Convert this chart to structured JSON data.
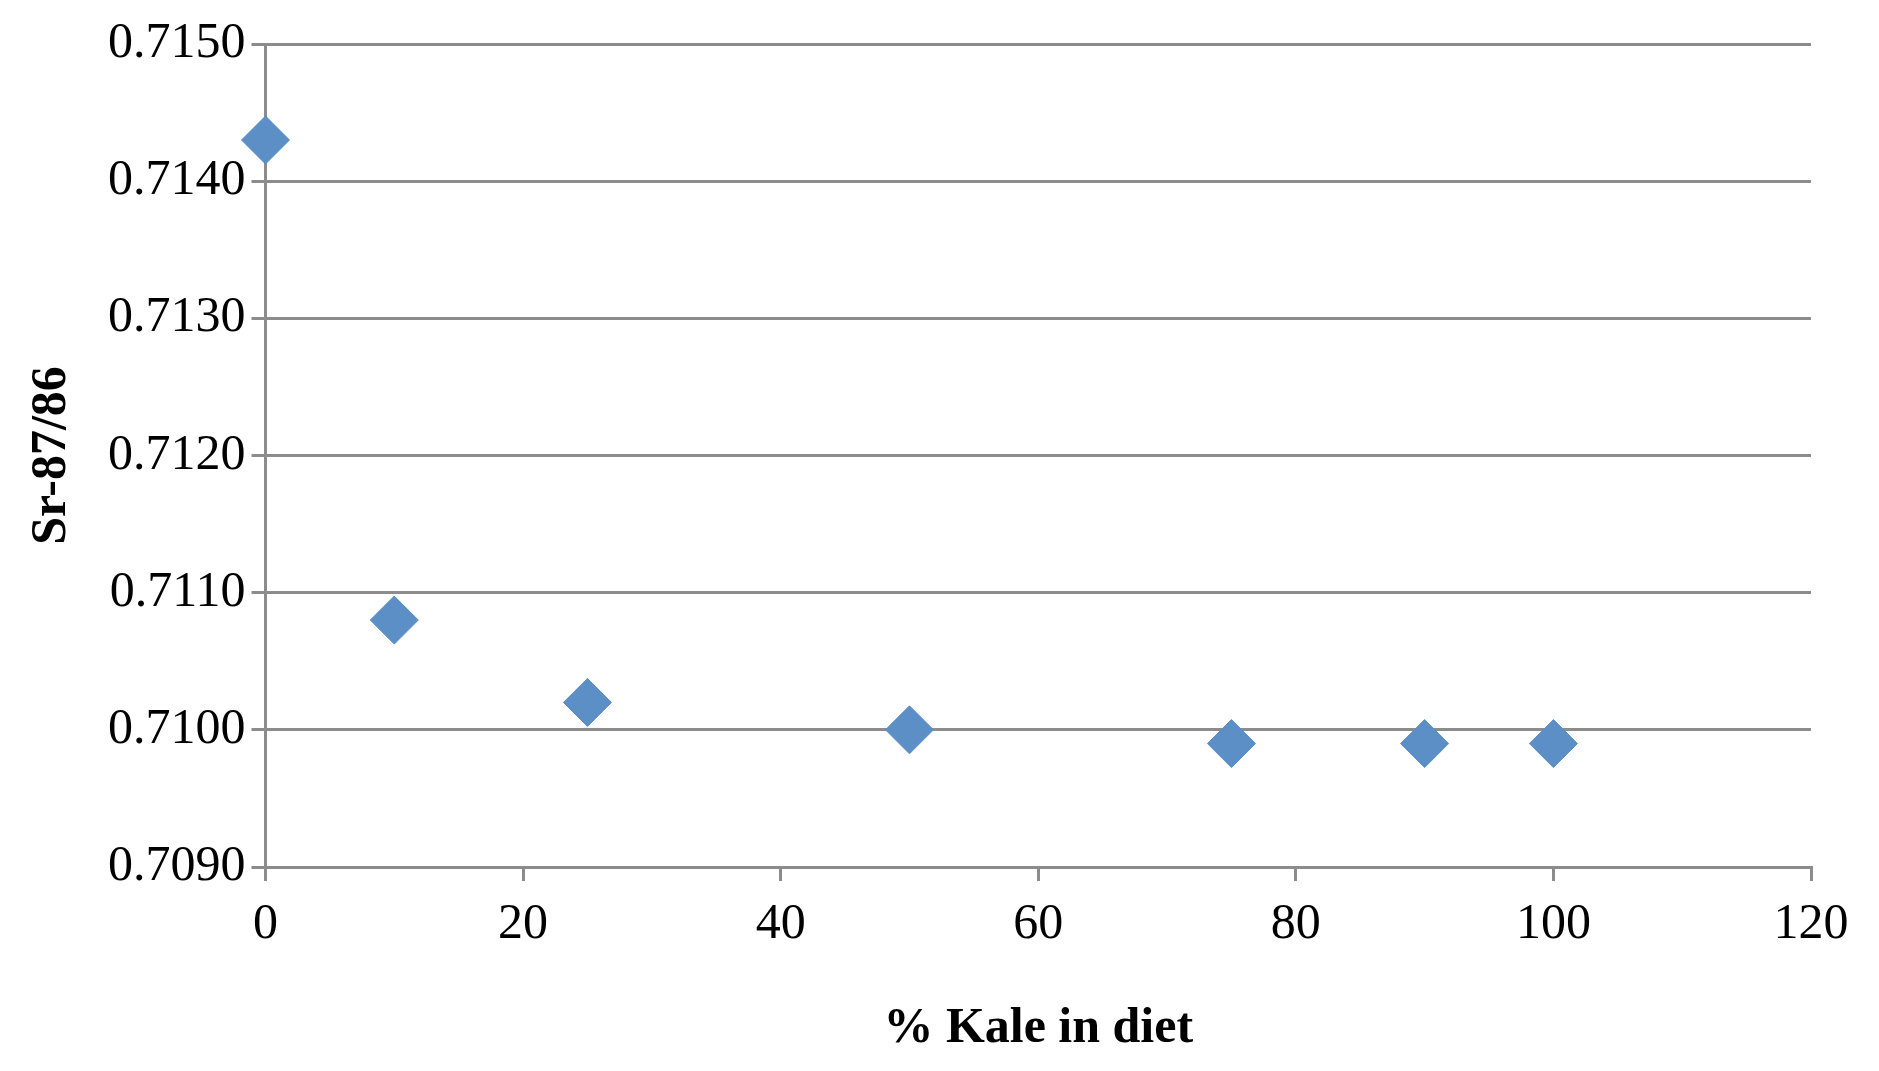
{
  "chart_data": {
    "type": "scatter",
    "xlabel": "% Kale in diet",
    "ylabel": "Sr-87/86",
    "x": [
      0,
      10,
      25,
      50,
      75,
      90,
      100
    ],
    "series": [
      {
        "color": "#5b8fc6",
        "values": [
          0.7143,
          0.7108,
          0.7102,
          0.71,
          0.7099,
          0.7099,
          0.7099
        ]
      }
    ],
    "xlim": [
      0,
      120
    ],
    "xticks": [
      0,
      20,
      40,
      60,
      80,
      100,
      120
    ],
    "ylim": [
      0.709,
      0.715
    ],
    "yticks": [
      {
        "value": 0.709,
        "label": "0.7090"
      },
      {
        "value": 0.71,
        "label": "0.7100"
      },
      {
        "value": 0.711,
        "label": "0.7110"
      },
      {
        "value": 0.712,
        "label": "0.7120"
      },
      {
        "value": 0.713,
        "label": "0.7130"
      },
      {
        "value": 0.714,
        "label": "0.7140"
      },
      {
        "value": 0.715,
        "label": "0.7150"
      }
    ],
    "grid": "y",
    "legend": false,
    "marker": "diamond"
  }
}
